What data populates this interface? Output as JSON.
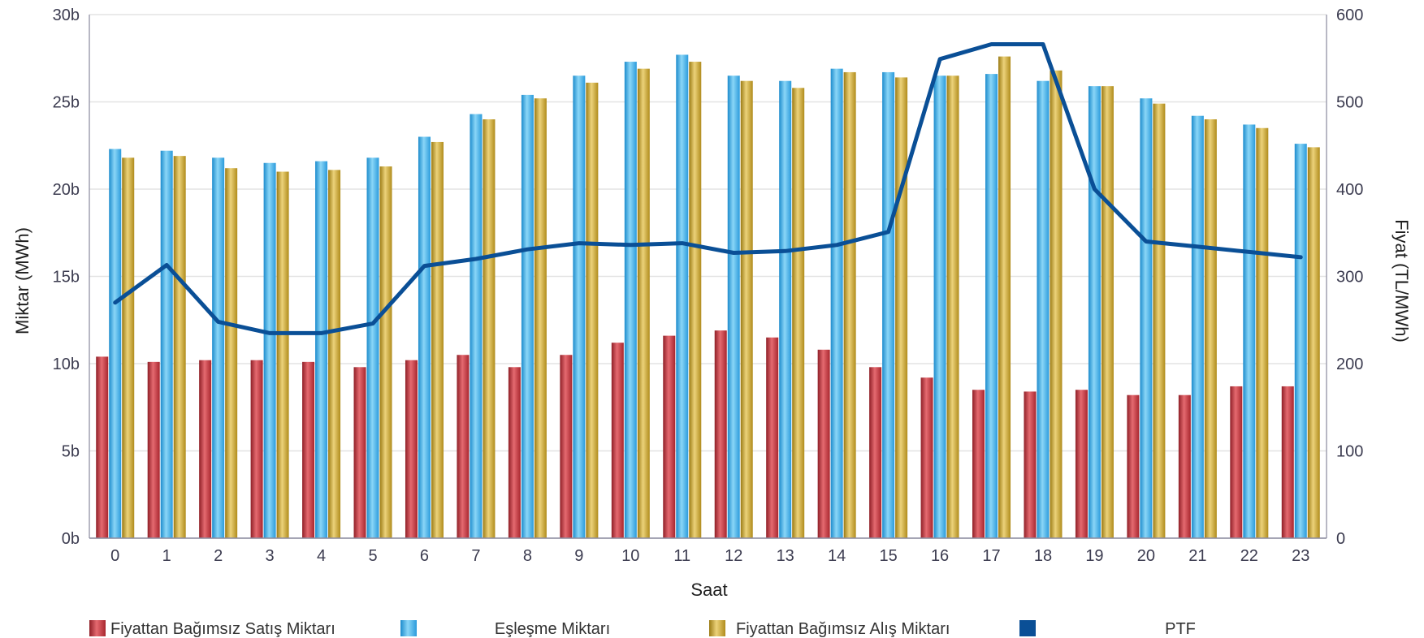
{
  "chart_data": {
    "type": "bar+line",
    "categories": [
      "0",
      "1",
      "2",
      "3",
      "4",
      "5",
      "6",
      "7",
      "8",
      "9",
      "10",
      "11",
      "12",
      "13",
      "14",
      "15",
      "16",
      "17",
      "18",
      "19",
      "20",
      "21",
      "22",
      "23"
    ],
    "xlabel": "Saat",
    "ylabel_left": "Miktar (MWh)",
    "ylabel_right": "Fiyat (TL/MWh)",
    "ylim_left": [
      0,
      30
    ],
    "ylim_right": [
      0,
      600
    ],
    "left_ticks": [
      "0b",
      "5b",
      "10b",
      "15b",
      "20b",
      "25b",
      "30b"
    ],
    "right_ticks": [
      "0",
      "100",
      "200",
      "300",
      "400",
      "500",
      "600"
    ],
    "grid": true,
    "legend_position": "bottom",
    "series": [
      {
        "name": "Fiyattan Bağımsız Satış Miktarı",
        "kind": "bar",
        "axis": "left",
        "color": "#c0343c",
        "values": [
          10.4,
          10.1,
          10.2,
          10.2,
          10.1,
          9.8,
          10.2,
          10.5,
          9.8,
          10.5,
          11.2,
          11.6,
          11.9,
          11.5,
          10.8,
          9.8,
          9.2,
          8.5,
          8.4,
          8.5,
          8.2,
          8.2,
          8.7,
          8.7
        ]
      },
      {
        "name": "Eşleşme Miktarı",
        "kind": "bar",
        "axis": "left",
        "color": "#3daee9",
        "values": [
          22.3,
          22.2,
          21.8,
          21.5,
          21.6,
          21.8,
          23.0,
          24.3,
          25.4,
          26.5,
          27.3,
          27.7,
          26.5,
          26.2,
          26.9,
          26.7,
          26.5,
          26.6,
          26.2,
          25.9,
          25.2,
          24.2,
          23.7,
          22.6
        ]
      },
      {
        "name": "Fiyattan Bağımsız Alış Miktarı",
        "kind": "bar",
        "axis": "left",
        "color": "#c9a227",
        "values": [
          21.8,
          21.9,
          21.2,
          21.0,
          21.1,
          21.3,
          22.7,
          24.0,
          25.2,
          26.1,
          26.9,
          27.3,
          26.2,
          25.8,
          26.7,
          26.4,
          26.5,
          27.6,
          26.8,
          25.9,
          24.9,
          24.0,
          23.5,
          22.4
        ]
      },
      {
        "name": "PTF",
        "kind": "line",
        "axis": "right",
        "color": "#0a4f96",
        "values": [
          270,
          313,
          248,
          235,
          235,
          246,
          312,
          320,
          331,
          338,
          336,
          338,
          327,
          329,
          336,
          351,
          549,
          566,
          566,
          400,
          340,
          334,
          328,
          322
        ]
      }
    ]
  }
}
